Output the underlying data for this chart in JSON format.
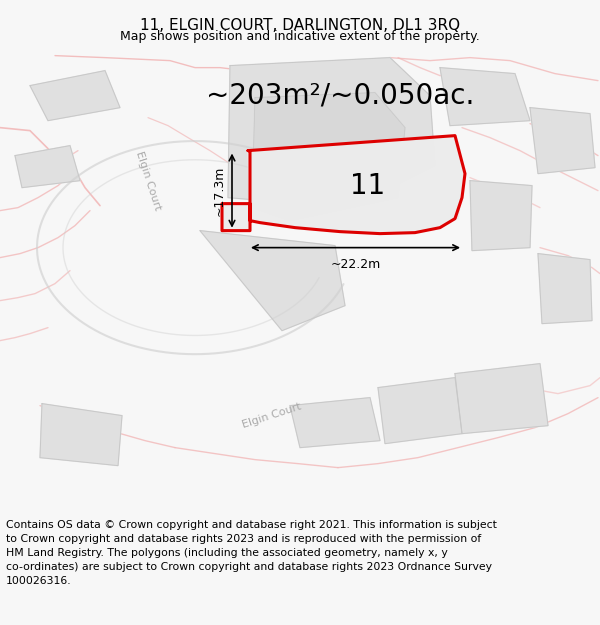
{
  "title": "11, ELGIN COURT, DARLINGTON, DL1 3RQ",
  "subtitle": "Map shows position and indicative extent of the property.",
  "area_text": "~203m²/~0.050ac.",
  "label_11": "11",
  "dim_width": "~22.2m",
  "dim_height": "~17.3m",
  "footer": "Contains OS data © Crown copyright and database right 2021. This information is subject\nto Crown copyright and database rights 2023 and is reproduced with the permission of\nHM Land Registry. The polygons (including the associated geometry, namely x, y\nco-ordinates) are subject to Crown copyright and database rights 2023 Ordnance Survey\n100026316.",
  "bg_color": "#f7f7f7",
  "map_bg": "#f0f0f0",
  "road_light": "#f2b8b8",
  "road_dark": "#d0d0d0",
  "building_fill": "#e0e0e0",
  "building_edge": "#c8c8c8",
  "plot_fill": "#ececec",
  "plot_edge": "#dd0000",
  "title_fontsize": 11,
  "subtitle_fontsize": 9,
  "area_fontsize": 20,
  "label_fontsize": 20,
  "dim_fontsize": 9,
  "footer_fontsize": 7.8,
  "road_label_fontsize": 8
}
